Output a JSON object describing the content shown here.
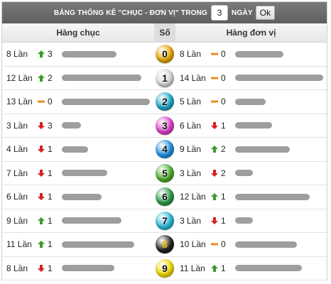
{
  "title": {
    "text": "BẢNG THỐNG KÊ \"CHỤC - ĐƠN VỊ\" TRONG",
    "days_value": "3",
    "days_label": "NGÀY",
    "ok_label": "Ok"
  },
  "header": {
    "tens": "Hàng chục",
    "digit": "Số",
    "units": "Hàng đơn vị"
  },
  "colors": {
    "up": "#3a9b2a",
    "down": "#d62020",
    "flat": "#f08a1c",
    "bar": "#9e9e9e"
  },
  "rows": [
    {
      "digit": "0",
      "ball_color": "#e8a800",
      "dark": false,
      "tens": {
        "count": "8 Lần",
        "trend": "up",
        "delta": "3",
        "level": 0.62
      },
      "units": {
        "count": "8 Lần",
        "trend": "flat",
        "delta": "0",
        "level": 0.55
      }
    },
    {
      "digit": "1",
      "ball_color": "#d9d9d9",
      "dark": false,
      "tens": {
        "count": "12 Lần",
        "trend": "up",
        "delta": "2",
        "level": 0.9
      },
      "units": {
        "count": "14 Lần",
        "trend": "flat",
        "delta": "0",
        "level": 1.0
      }
    },
    {
      "digit": "2",
      "ball_color": "#1fa6c9",
      "dark": false,
      "tens": {
        "count": "13 Lần",
        "trend": "flat",
        "delta": "0",
        "level": 1.0
      },
      "units": {
        "count": "5 Lần",
        "trend": "flat",
        "delta": "0",
        "level": 0.35
      }
    },
    {
      "digit": "3",
      "ball_color": "#e040c8",
      "dark": false,
      "tens": {
        "count": "3 Lần",
        "trend": "down",
        "delta": "3",
        "level": 0.22
      },
      "units": {
        "count": "6 Lần",
        "trend": "down",
        "delta": "1",
        "level": 0.42
      }
    },
    {
      "digit": "4",
      "ball_color": "#1f8fe0",
      "dark": false,
      "tens": {
        "count": "4 Lần",
        "trend": "down",
        "delta": "1",
        "level": 0.3
      },
      "units": {
        "count": "9 Lần",
        "trend": "up",
        "delta": "2",
        "level": 0.62
      }
    },
    {
      "digit": "5",
      "ball_color": "#4cae2a",
      "dark": false,
      "tens": {
        "count": "7 Lần",
        "trend": "down",
        "delta": "1",
        "level": 0.52
      },
      "units": {
        "count": "3 Lần",
        "trend": "down",
        "delta": "2",
        "level": 0.2
      }
    },
    {
      "digit": "6",
      "ball_color": "#2a9a4a",
      "dark": false,
      "tens": {
        "count": "6 Lần",
        "trend": "down",
        "delta": "1",
        "level": 0.45
      },
      "units": {
        "count": "12 Lần",
        "trend": "up",
        "delta": "1",
        "level": 0.85
      }
    },
    {
      "digit": "7",
      "ball_color": "#2bb8d8",
      "dark": false,
      "tens": {
        "count": "9 Lần",
        "trend": "up",
        "delta": "1",
        "level": 0.68
      },
      "units": {
        "count": "3 Lần",
        "trend": "down",
        "delta": "1",
        "level": 0.2
      }
    },
    {
      "digit": "8",
      "ball_color": "#222222",
      "dark": true,
      "tens": {
        "count": "11 Lần",
        "trend": "up",
        "delta": "1",
        "level": 0.82
      },
      "units": {
        "count": "10 Lần",
        "trend": "flat",
        "delta": "0",
        "level": 0.7
      }
    },
    {
      "digit": "9",
      "ball_color": "#f2dc00",
      "dark": false,
      "tens": {
        "count": "8 Lần",
        "trend": "down",
        "delta": "1",
        "level": 0.6
      },
      "units": {
        "count": "11 Lần",
        "trend": "up",
        "delta": "1",
        "level": 0.76
      }
    }
  ]
}
